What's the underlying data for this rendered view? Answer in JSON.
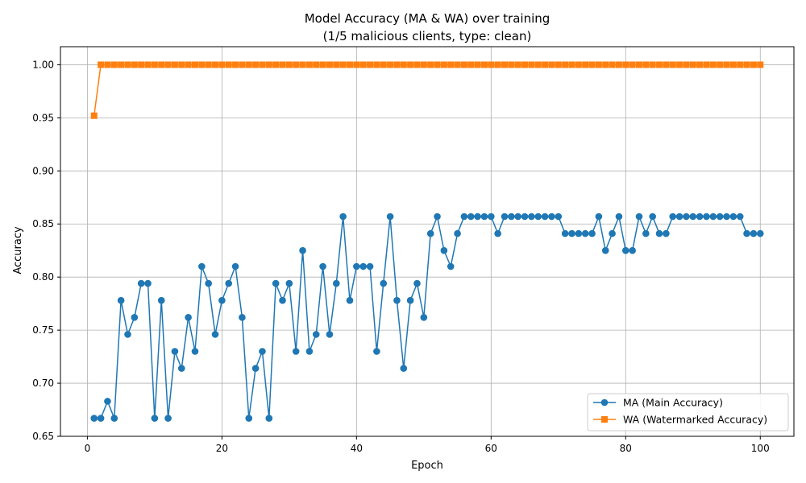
{
  "chart_data": {
    "type": "line",
    "title": "Model Accuracy (MA & WA) over training",
    "subtitle": "(1/5 malicious clients, type: clean)",
    "xlabel": "Epoch",
    "ylabel": "Accuracy",
    "xlim": [
      -4,
      105
    ],
    "ylim": [
      0.65,
      1.017
    ],
    "xticks": [
      0,
      20,
      40,
      60,
      80,
      100
    ],
    "yticks": [
      "0.65",
      "0.70",
      "0.75",
      "0.80",
      "0.85",
      "0.90",
      "0.95",
      "1.00"
    ],
    "grid": true,
    "legend_position": "bottom-right",
    "series": [
      {
        "name": "MA (Main Accuracy)",
        "color": "#1f77b4",
        "marker": "circle",
        "x": [
          1,
          2,
          3,
          4,
          5,
          6,
          7,
          8,
          9,
          10,
          11,
          12,
          13,
          14,
          15,
          16,
          17,
          18,
          19,
          20,
          21,
          22,
          23,
          24,
          25,
          26,
          27,
          28,
          29,
          30,
          31,
          32,
          33,
          34,
          35,
          36,
          37,
          38,
          39,
          40,
          41,
          42,
          43,
          44,
          45,
          46,
          47,
          48,
          49,
          50,
          51,
          52,
          53,
          54,
          55,
          56,
          57,
          58,
          59,
          60,
          61,
          62,
          63,
          64,
          65,
          66,
          67,
          68,
          69,
          70,
          71,
          72,
          73,
          74,
          75,
          76,
          77,
          78,
          79,
          80,
          81,
          82,
          83,
          84,
          85,
          86,
          87,
          88,
          89,
          90,
          91,
          92,
          93,
          94,
          95,
          96,
          97,
          98,
          99,
          100
        ],
        "values": [
          0.667,
          0.667,
          0.683,
          0.667,
          0.778,
          0.746,
          0.762,
          0.794,
          0.794,
          0.667,
          0.778,
          0.667,
          0.73,
          0.714,
          0.762,
          0.73,
          0.81,
          0.794,
          0.746,
          0.778,
          0.794,
          0.81,
          0.762,
          0.667,
          0.714,
          0.73,
          0.667,
          0.794,
          0.778,
          0.794,
          0.73,
          0.825,
          0.73,
          0.746,
          0.81,
          0.746,
          0.794,
          0.857,
          0.778,
          0.81,
          0.81,
          0.81,
          0.73,
          0.794,
          0.857,
          0.778,
          0.714,
          0.778,
          0.794,
          0.762,
          0.841,
          0.857,
          0.825,
          0.81,
          0.841,
          0.857,
          0.857,
          0.857,
          0.857,
          0.857,
          0.841,
          0.857,
          0.857,
          0.857,
          0.857,
          0.857,
          0.857,
          0.857,
          0.857,
          0.857,
          0.841,
          0.841,
          0.841,
          0.841,
          0.841,
          0.857,
          0.825,
          0.841,
          0.857,
          0.825,
          0.825,
          0.857,
          0.841,
          0.857,
          0.841,
          0.841,
          0.857,
          0.857,
          0.857,
          0.857,
          0.857,
          0.857,
          0.857,
          0.857,
          0.857,
          0.857,
          0.857,
          0.841,
          0.841,
          0.841
        ]
      },
      {
        "name": "WA (Watermarked Accuracy)",
        "color": "#ff7f0e",
        "marker": "square",
        "x": [
          1,
          2,
          3,
          4,
          5,
          6,
          7,
          8,
          9,
          10,
          11,
          12,
          13,
          14,
          15,
          16,
          17,
          18,
          19,
          20,
          21,
          22,
          23,
          24,
          25,
          26,
          27,
          28,
          29,
          30,
          31,
          32,
          33,
          34,
          35,
          36,
          37,
          38,
          39,
          40,
          41,
          42,
          43,
          44,
          45,
          46,
          47,
          48,
          49,
          50,
          51,
          52,
          53,
          54,
          55,
          56,
          57,
          58,
          59,
          60,
          61,
          62,
          63,
          64,
          65,
          66,
          67,
          68,
          69,
          70,
          71,
          72,
          73,
          74,
          75,
          76,
          77,
          78,
          79,
          80,
          81,
          82,
          83,
          84,
          85,
          86,
          87,
          88,
          89,
          90,
          91,
          92,
          93,
          94,
          95,
          96,
          97,
          98,
          99,
          100
        ],
        "values": [
          0.952,
          1.0,
          1.0,
          1.0,
          1.0,
          1.0,
          1.0,
          1.0,
          1.0,
          1.0,
          1.0,
          1.0,
          1.0,
          1.0,
          1.0,
          1.0,
          1.0,
          1.0,
          1.0,
          1.0,
          1.0,
          1.0,
          1.0,
          1.0,
          1.0,
          1.0,
          1.0,
          1.0,
          1.0,
          1.0,
          1.0,
          1.0,
          1.0,
          1.0,
          1.0,
          1.0,
          1.0,
          1.0,
          1.0,
          1.0,
          1.0,
          1.0,
          1.0,
          1.0,
          1.0,
          1.0,
          1.0,
          1.0,
          1.0,
          1.0,
          1.0,
          1.0,
          1.0,
          1.0,
          1.0,
          1.0,
          1.0,
          1.0,
          1.0,
          1.0,
          1.0,
          1.0,
          1.0,
          1.0,
          1.0,
          1.0,
          1.0,
          1.0,
          1.0,
          1.0,
          1.0,
          1.0,
          1.0,
          1.0,
          1.0,
          1.0,
          1.0,
          1.0,
          1.0,
          1.0,
          1.0,
          1.0,
          1.0,
          1.0,
          1.0,
          1.0,
          1.0,
          1.0,
          1.0,
          1.0,
          1.0,
          1.0,
          1.0,
          1.0,
          1.0,
          1.0,
          1.0,
          1.0,
          1.0,
          1.0
        ]
      }
    ]
  }
}
